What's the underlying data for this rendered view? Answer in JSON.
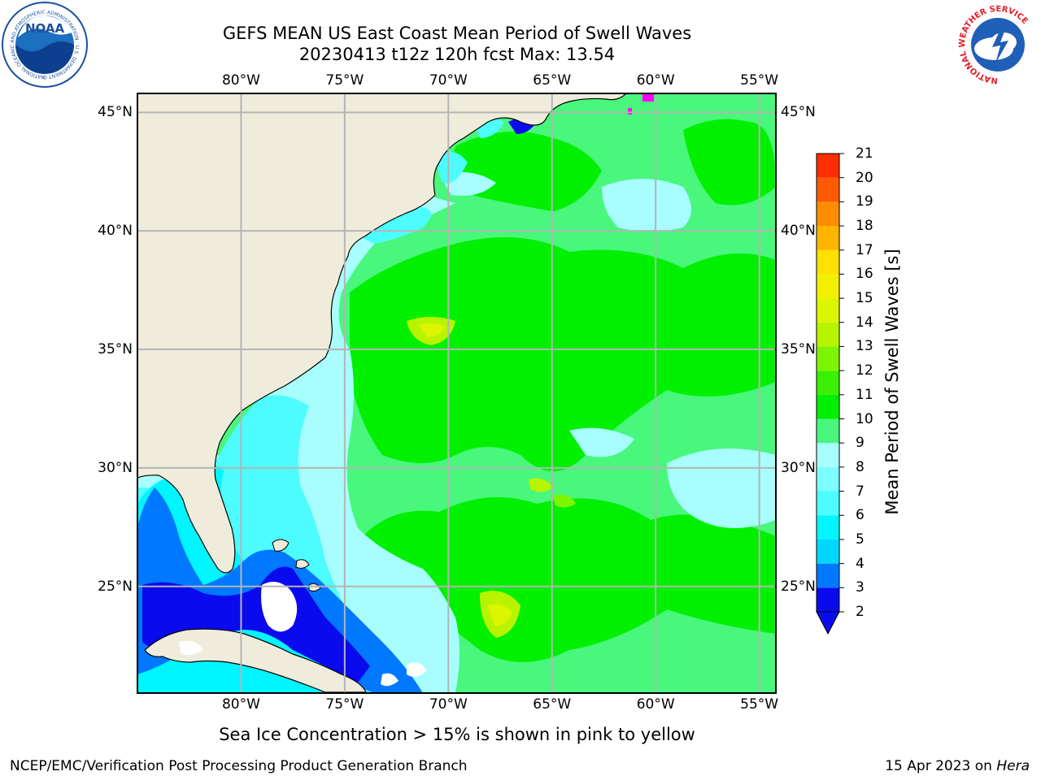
{
  "header": {
    "title_line1": "GEFS MEAN US East Coast Mean Period of Swell Waves",
    "title_line2": "20230413 t12z 120h fcst   Max: 13.54"
  },
  "logos": {
    "noaa": {
      "center_text": "NOAA",
      "ring_text": "NATIONAL OCEANIC AND ATMOSPHERIC ADMINISTRATION · U.S. DEPARTMENT OF COMMERCE"
    },
    "nws": {
      "ring_text": "NATIONAL WEATHER SERVICE"
    }
  },
  "map": {
    "lon_labels": [
      "80°W",
      "75°W",
      "70°W",
      "65°W",
      "60°W",
      "55°W"
    ],
    "lat_labels": [
      "45°N",
      "40°N",
      "35°N",
      "30°N",
      "25°N"
    ],
    "land_color": "#efecdc",
    "grid_color": "#b4b4b4",
    "projection": "plate carree",
    "extent_lon": [
      -85,
      -54.2
    ],
    "extent_lat": [
      20.5,
      45.8
    ]
  },
  "colorbar": {
    "label": "Mean Period of Swell Waves [s]",
    "ticks": [
      "21",
      "20",
      "19",
      "18",
      "17",
      "16",
      "15",
      "14",
      "13",
      "12",
      "11",
      "10",
      "9",
      "8",
      "7",
      "6",
      "5",
      "4",
      "3",
      "2"
    ],
    "levels": [
      2,
      3,
      4,
      5,
      6,
      7,
      8,
      9,
      10,
      11,
      12,
      13,
      14,
      15,
      16,
      17,
      18,
      19,
      20,
      21
    ],
    "colors": [
      "#0a0aee",
      "#0078ff",
      "#00d7ff",
      "#00f5ff",
      "#4cfcff",
      "#7cfdff",
      "#a8feff",
      "#48f77c",
      "#00f000",
      "#3af000",
      "#7ef400",
      "#b8f400",
      "#dcf500",
      "#f0f000",
      "#ffe000",
      "#ffb400",
      "#ff8c00",
      "#ff5a00",
      "#ff2d00",
      "#ff0000"
    ],
    "underflow_color": "#0a0aee"
  },
  "note": "Sea Ice Concentration > 15% is shown in pink to yellow",
  "footer": {
    "left": "NCEP/EMC/Verification Post Processing Product Generation Branch",
    "right_date": "15 Apr 2023 on ",
    "right_host": "Hera"
  }
}
